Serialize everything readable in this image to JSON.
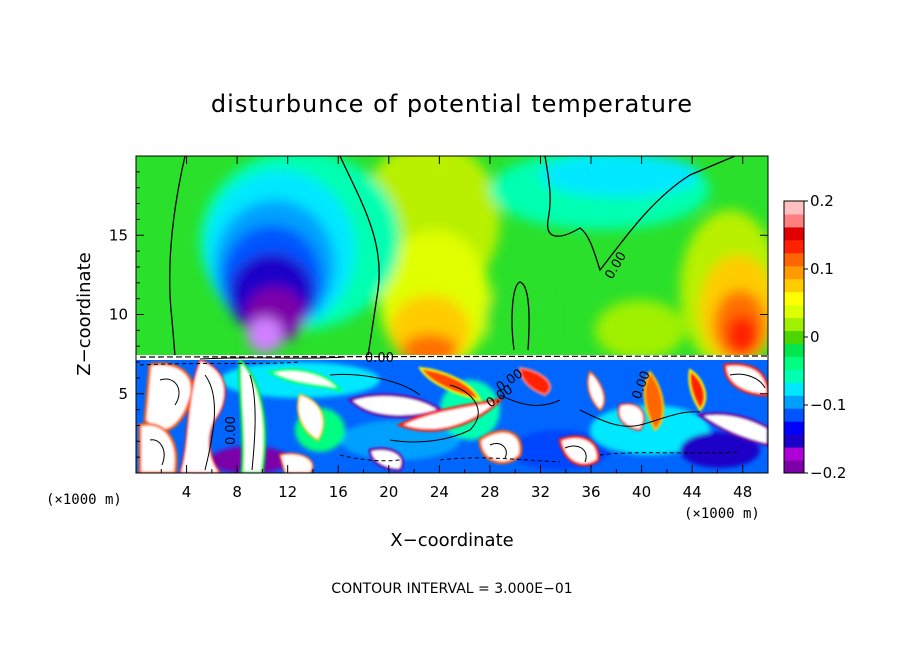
{
  "chart_data": {
    "type": "heatmap",
    "title": "disturbunce of potential temperature",
    "xlabel": "X−coordinate",
    "ylabel": "Z−coordinate",
    "x_unit": "(×1000 m)",
    "x_unit_right": "(×1000 m)",
    "xlim": [
      0,
      50
    ],
    "ylim": [
      0,
      20
    ],
    "x_ticks": [
      "4",
      "8",
      "12",
      "16",
      "20",
      "24",
      "28",
      "32",
      "36",
      "40",
      "44",
      "48"
    ],
    "y_ticks": [
      "5",
      "10",
      "15"
    ],
    "colorbar": {
      "range": [
        -0.2,
        0.2
      ],
      "labels": [
        "0.2",
        "0.1",
        "0",
        "−0.1",
        "−0.2"
      ],
      "colors": [
        "#7b00a8",
        "#b000d8",
        "#1a00c8",
        "#0000ff",
        "#0055ff",
        "#00a0ff",
        "#00e8ff",
        "#00ffb0",
        "#00ff80",
        "#00e64c",
        "#4cd600",
        "#a0f000",
        "#ddff00",
        "#ffff00",
        "#ffcc00",
        "#ff9a00",
        "#ff6600",
        "#ff2200",
        "#e00000",
        "#ff8080",
        "#ffc0c0"
      ]
    },
    "contour_labels": [
      "0.00",
      "0.00",
      "0.00",
      "0.00",
      "0.00",
      "0.00"
    ],
    "note": "CONTOUR INTERVAL = 3.000E−01",
    "grid": false,
    "legend": "colorbar-right"
  }
}
